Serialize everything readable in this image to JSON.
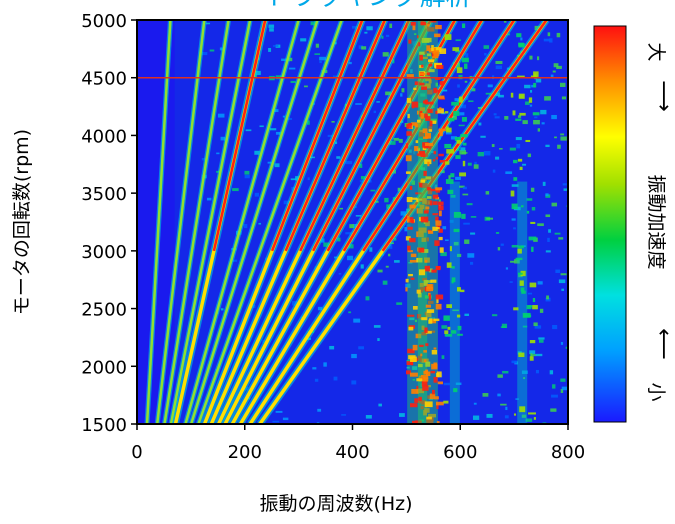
{
  "chart_data": {
    "type": "heatmap",
    "title": "トラッキング解析",
    "xlabel": "振動の周波数(Hz)",
    "ylabel": "モータの回転数(rpm)",
    "xlim": [
      0,
      800
    ],
    "ylim": [
      1500,
      5000
    ],
    "xticks": [
      "0",
      "200",
      "400",
      "600",
      "800"
    ],
    "yticks": [
      "1500",
      "2000",
      "2500",
      "3000",
      "3500",
      "4000",
      "4500",
      "5000"
    ],
    "colorbar": {
      "label": "振動加速度",
      "low_label": "小",
      "high_label": "大",
      "low_arrow": "⟵",
      "high_arrow": "⟶",
      "colormap": [
        "#1a1aff",
        "#00a0ff",
        "#00e0e0",
        "#00d040",
        "#a0e000",
        "#ffff00",
        "#ff9000",
        "#ff1010"
      ]
    },
    "reference_line_rpm": 4500,
    "order_lines_hz_at_5000rpm": [
      62,
      125,
      170,
      210,
      238,
      300,
      335,
      380,
      418,
      460,
      505,
      545,
      590,
      640,
      700,
      760
    ],
    "strong_order_lines_hz_at_5000rpm": [
      238,
      418,
      460,
      505,
      545,
      590,
      640,
      700,
      760
    ],
    "resonance_bands_hz": [
      520,
      540,
      590,
      715
    ]
  }
}
